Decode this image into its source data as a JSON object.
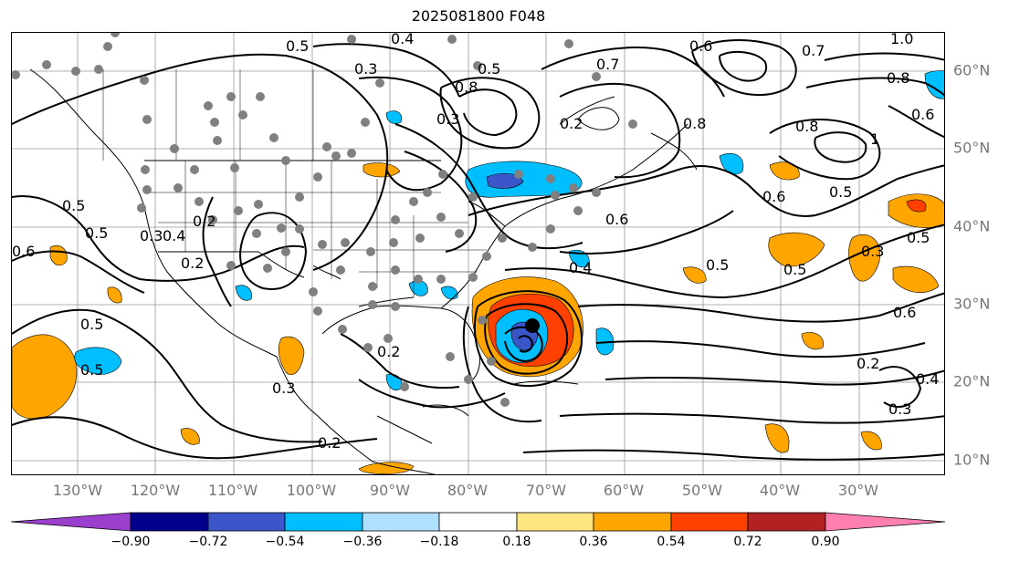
{
  "title": "2025081800 F048",
  "lon_labels": [
    "130°W",
    "120°W",
    "110°W",
    "100°W",
    "90°W",
    "80°W",
    "70°W",
    "60°W",
    "50°W",
    "40°W",
    "30°W"
  ],
  "lat_labels": [
    "60°N",
    "50°N",
    "40°N",
    "30°N",
    "20°N",
    "10°N"
  ],
  "contour_labels": [
    "0.5",
    "0.4",
    "0.3",
    "0.5",
    "0.8",
    "0.3",
    "0.7",
    "0.7",
    "0.6",
    "1.0",
    "0.8",
    "0.6",
    "0.8",
    "1",
    "0.8",
    "0.6",
    "0.5",
    "0.6",
    "0.5",
    "0.2",
    "0.2",
    "0.5",
    "0.5",
    "0.6",
    "0.3",
    "0.4",
    "0.2",
    "0.5",
    "0.5",
    "0.5",
    "0.4",
    "0.5",
    "0.6",
    "0.2",
    "0.4",
    "0.3",
    "0.2",
    "0.3",
    "0.3",
    "0.2"
  ],
  "colorbar": {
    "ticks": [
      "−0.90",
      "−0.72",
      "−0.54",
      "−0.36",
      "−0.18",
      "0.18",
      "0.36",
      "0.54",
      "0.72",
      "0.90"
    ],
    "colors": [
      "#9b3fcf",
      "#00008b",
      "#3a56c9",
      "#00bfff",
      "#b0e0ff",
      "#ffffff",
      "#ffe680",
      "#ffa500",
      "#ff4000",
      "#b22222",
      "#ff80b0"
    ]
  },
  "colors": {
    "land_dots": "#808080",
    "contour": "#000000",
    "axis_label": "#777777"
  }
}
